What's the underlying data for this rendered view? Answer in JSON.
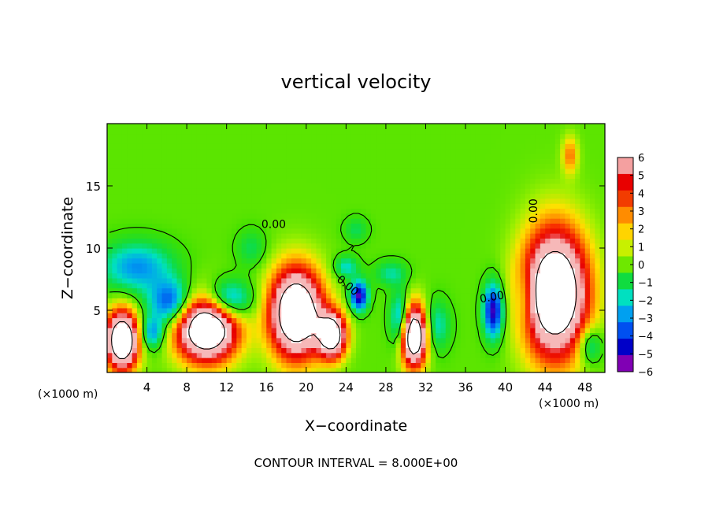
{
  "chart_data": {
    "type": "heatmap",
    "title": "vertical velocity",
    "xlabel": "X−coordinate",
    "ylabel": "Z−coordinate",
    "x_units": "(×1000 m)",
    "footer": "CONTOUR INTERVAL = 8.000E+00",
    "contour_label": "0.00",
    "xlim": [
      0,
      50
    ],
    "ylim": [
      0,
      20
    ],
    "x_ticks": [
      4,
      8,
      12,
      16,
      20,
      24,
      28,
      32,
      36,
      40,
      44,
      48
    ],
    "y_ticks": [
      5,
      10,
      15
    ],
    "colorbar": {
      "ticks": [
        6,
        5,
        4,
        3,
        2,
        1,
        0,
        "−1",
        "−2",
        "−3",
        "−4",
        "−5",
        "−6"
      ],
      "range": [
        -6,
        6
      ],
      "colors": [
        "#f4a0a0",
        "#e80000",
        "#f23c00",
        "#ff8c00",
        "#ffd400",
        "#c8f000",
        "#6ee800",
        "#10dc40",
        "#00e0c0",
        "#00a0f0",
        "#0050f0",
        "#0000c8",
        "#8000b4"
      ]
    },
    "background_value": 0.3,
    "features": [
      {
        "x": 1.5,
        "z": 2.6,
        "rx": 1.6,
        "rz": 2.3,
        "value": 12
      },
      {
        "x": 4.5,
        "z": 3.2,
        "rx": 1.2,
        "rz": 1.3,
        "value": -3.5
      },
      {
        "x": 10.0,
        "z": 3.6,
        "rx": 3.0,
        "rz": 2.6,
        "value": 12
      },
      {
        "x": 6.5,
        "z": 5.6,
        "rx": 2.2,
        "rz": 1.8,
        "value": -5
      },
      {
        "x": 12.0,
        "z": 5.8,
        "rx": 2.4,
        "rz": 1.6,
        "value": -5
      },
      {
        "x": 3.0,
        "z": 8.5,
        "rx": 3.6,
        "rz": 2.0,
        "value": -3.5
      },
      {
        "x": 19.0,
        "z": 4.8,
        "rx": 2.6,
        "rz": 3.5,
        "value": 12
      },
      {
        "x": 22.6,
        "z": 3.0,
        "rx": 1.4,
        "rz": 1.8,
        "value": 10
      },
      {
        "x": 25.3,
        "z": 6.2,
        "rx": 0.9,
        "rz": 1.2,
        "value": -6
      },
      {
        "x": 24.0,
        "z": 8.5,
        "rx": 1.2,
        "rz": 0.9,
        "value": -2.5
      },
      {
        "x": 28.5,
        "z": 8.0,
        "rx": 1.6,
        "rz": 1.0,
        "value": -2
      },
      {
        "x": 30.8,
        "z": 3.0,
        "rx": 1.3,
        "rz": 2.4,
        "value": 12
      },
      {
        "x": 29.5,
        "z": 4.2,
        "rx": 1.0,
        "rz": 2.2,
        "value": -4.5
      },
      {
        "x": 33.0,
        "z": 3.8,
        "rx": 1.4,
        "rz": 2.0,
        "value": -2.5
      },
      {
        "x": 38.8,
        "z": 5.0,
        "rx": 1.0,
        "rz": 2.2,
        "value": -6
      },
      {
        "x": 45.0,
        "z": 6.4,
        "rx": 3.2,
        "rz": 5.0,
        "value": 12
      },
      {
        "x": 42.0,
        "z": 6.0,
        "rx": 1.0,
        "rz": 2.5,
        "value": -2
      },
      {
        "x": 48.5,
        "z": 2.2,
        "rx": 1.2,
        "rz": 1.5,
        "value": -3
      },
      {
        "x": 46.5,
        "z": 17.5,
        "rx": 0.8,
        "rz": 1.5,
        "value": 3
      },
      {
        "x": 14.5,
        "z": 10.0,
        "rx": 1.5,
        "rz": 1.5,
        "value": -1.5
      },
      {
        "x": 25.0,
        "z": 11.5,
        "rx": 1.2,
        "rz": 1.0,
        "value": -1.5
      }
    ]
  }
}
